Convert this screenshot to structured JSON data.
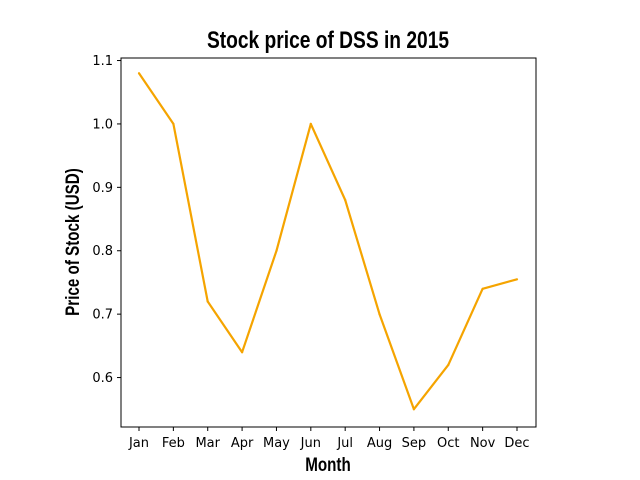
{
  "chart_data": {
    "type": "line",
    "title": "Stock price of DSS in 2015",
    "xlabel": "Month",
    "ylabel": "Price of Stock (USD)",
    "categories": [
      "Jan",
      "Feb",
      "Mar",
      "Apr",
      "May",
      "Jun",
      "Jul",
      "Aug",
      "Sep",
      "Oct",
      "Nov",
      "Dec"
    ],
    "series": [
      {
        "values": [
          1.08,
          1.0,
          0.72,
          0.64,
          0.8,
          1.0,
          0.88,
          0.7,
          0.55,
          0.62,
          0.74,
          0.755
        ],
        "color": "#f5a400"
      }
    ],
    "ylim": [
      0.522,
      1.104
    ],
    "yticks": [
      0.6,
      0.7,
      0.8,
      0.9,
      1.0,
      1.1
    ],
    "ytick_labels": [
      "0.6",
      "0.7",
      "0.8",
      "0.9",
      "1.0",
      "1.1"
    ],
    "grid": false,
    "legend": "none"
  }
}
